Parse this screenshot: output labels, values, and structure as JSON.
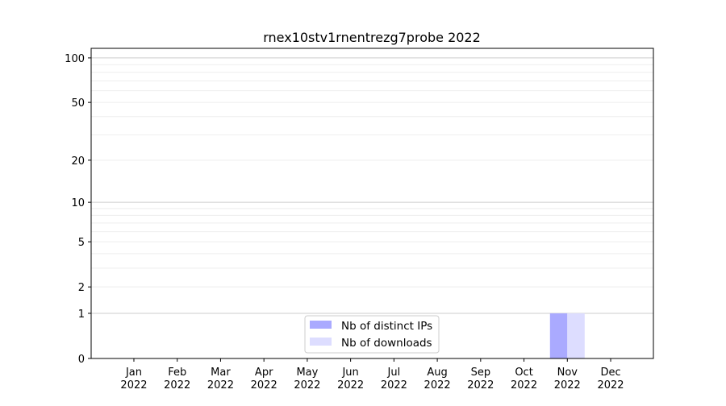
{
  "chart_data": {
    "type": "bar",
    "title": "rnex10stv1rnentrezg7probe 2022",
    "xlabel": "",
    "ylabel": "",
    "categories": [
      "Jan\n2022",
      "Feb\n2022",
      "Mar\n2022",
      "Apr\n2022",
      "May\n2022",
      "Jun\n2022",
      "Jul\n2022",
      "Aug\n2022",
      "Sep\n2022",
      "Oct\n2022",
      "Nov\n2022",
      "Dec\n2022"
    ],
    "series": [
      {
        "name": "Nb of distinct IPs",
        "color": "#aaaaff",
        "values": [
          0,
          0,
          0,
          0,
          0,
          0,
          0,
          0,
          0,
          0,
          1,
          0
        ]
      },
      {
        "name": "Nb of downloads",
        "color": "#ddddff",
        "values": [
          0,
          0,
          0,
          0,
          0,
          0,
          0,
          0,
          0,
          0,
          1,
          0
        ]
      }
    ],
    "yscale": "log(1+y)",
    "ylim": [
      0,
      116
    ],
    "yticks": [
      0,
      1,
      2,
      5,
      10,
      20,
      50,
      100
    ],
    "grid": true,
    "legend": "lower-center"
  }
}
